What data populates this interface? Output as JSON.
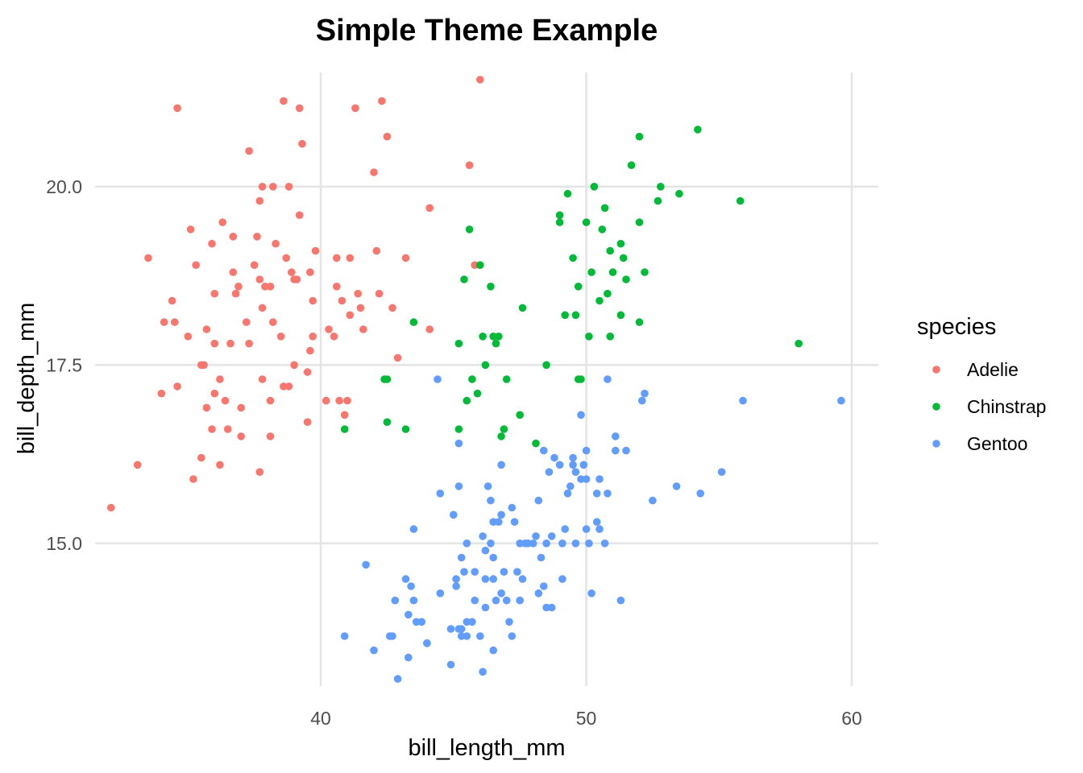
{
  "chart_data": {
    "type": "scatter",
    "title": "Simple Theme Example",
    "xlabel": "bill_length_mm",
    "ylabel": "bill_depth_mm",
    "xlim": [
      31.5,
      61
    ],
    "ylim": [
      13,
      21.6
    ],
    "x_ticks": [
      40,
      50,
      60
    ],
    "x_tick_labels": [
      "40",
      "50",
      "60"
    ],
    "y_ticks": [
      15,
      17.5,
      20
    ],
    "y_tick_labels": [
      "15.0",
      "17.5",
      "20.0"
    ],
    "grid": true,
    "legend": {
      "title": "species",
      "placement": "right"
    },
    "series": [
      {
        "name": "Adelie",
        "color": "#F8766D",
        "points": [
          [
            32.1,
            15.5
          ],
          [
            33.1,
            16.1
          ],
          [
            33.5,
            19.0
          ],
          [
            34.0,
            17.1
          ],
          [
            34.1,
            18.1
          ],
          [
            34.4,
            18.4
          ],
          [
            34.5,
            18.1
          ],
          [
            34.6,
            21.1
          ],
          [
            34.6,
            17.2
          ],
          [
            35.0,
            17.9
          ],
          [
            35.1,
            19.4
          ],
          [
            35.2,
            15.9
          ],
          [
            35.3,
            18.9
          ],
          [
            35.5,
            16.2
          ],
          [
            35.5,
            17.5
          ],
          [
            35.6,
            17.5
          ],
          [
            35.7,
            16.9
          ],
          [
            35.7,
            18.0
          ],
          [
            35.9,
            19.2
          ],
          [
            35.9,
            16.6
          ],
          [
            36.0,
            17.8
          ],
          [
            36.0,
            18.5
          ],
          [
            36.0,
            17.1
          ],
          [
            36.2,
            17.3
          ],
          [
            36.2,
            16.1
          ],
          [
            36.3,
            19.5
          ],
          [
            36.4,
            17.0
          ],
          [
            36.5,
            16.6
          ],
          [
            36.6,
            17.8
          ],
          [
            36.7,
            19.3
          ],
          [
            36.7,
            18.8
          ],
          [
            36.8,
            18.5
          ],
          [
            36.9,
            18.6
          ],
          [
            37.0,
            16.9
          ],
          [
            37.0,
            16.5
          ],
          [
            37.2,
            18.1
          ],
          [
            37.3,
            17.8
          ],
          [
            37.3,
            20.5
          ],
          [
            37.5,
            18.9
          ],
          [
            37.6,
            19.3
          ],
          [
            37.7,
            18.7
          ],
          [
            37.7,
            16.0
          ],
          [
            37.7,
            19.8
          ],
          [
            37.8,
            18.3
          ],
          [
            37.8,
            20.0
          ],
          [
            37.8,
            17.3
          ],
          [
            37.9,
            18.6
          ],
          [
            38.1,
            18.6
          ],
          [
            38.1,
            17.0
          ],
          [
            38.1,
            16.5
          ],
          [
            38.2,
            18.1
          ],
          [
            38.2,
            20.0
          ],
          [
            38.3,
            19.2
          ],
          [
            38.5,
            17.9
          ],
          [
            38.6,
            21.2
          ],
          [
            38.6,
            17.2
          ],
          [
            38.7,
            19.0
          ],
          [
            38.8,
            17.2
          ],
          [
            38.8,
            20.0
          ],
          [
            38.9,
            18.8
          ],
          [
            39.0,
            17.5
          ],
          [
            39.0,
            18.7
          ],
          [
            39.1,
            18.7
          ],
          [
            39.2,
            19.6
          ],
          [
            39.2,
            21.1
          ],
          [
            39.3,
            20.6
          ],
          [
            39.5,
            17.4
          ],
          [
            39.5,
            16.7
          ],
          [
            39.6,
            17.7
          ],
          [
            39.6,
            18.8
          ],
          [
            39.7,
            18.4
          ],
          [
            39.7,
            17.9
          ],
          [
            39.8,
            19.1
          ],
          [
            40.2,
            17.0
          ],
          [
            40.3,
            18.0
          ],
          [
            40.5,
            17.9
          ],
          [
            40.6,
            18.6
          ],
          [
            40.6,
            19.0
          ],
          [
            40.7,
            17.0
          ],
          [
            40.8,
            18.4
          ],
          [
            40.9,
            16.8
          ],
          [
            41.0,
            17.0
          ],
          [
            41.1,
            18.2
          ],
          [
            41.1,
            19.0
          ],
          [
            41.3,
            21.1
          ],
          [
            41.4,
            18.5
          ],
          [
            41.5,
            18.3
          ],
          [
            41.6,
            18.0
          ],
          [
            42.0,
            20.2
          ],
          [
            42.1,
            19.1
          ],
          [
            42.2,
            18.5
          ],
          [
            42.3,
            21.2
          ],
          [
            42.5,
            20.7
          ],
          [
            42.7,
            18.3
          ],
          [
            42.9,
            17.6
          ],
          [
            43.2,
            19.0
          ],
          [
            44.1,
            19.7
          ],
          [
            44.1,
            18.0
          ],
          [
            45.6,
            20.3
          ],
          [
            45.8,
            18.9
          ],
          [
            46.0,
            21.5
          ]
        ]
      },
      {
        "name": "Chinstrap",
        "color": "#00BA38",
        "points": [
          [
            40.9,
            16.6
          ],
          [
            42.4,
            17.3
          ],
          [
            42.5,
            17.3
          ],
          [
            42.5,
            16.7
          ],
          [
            43.2,
            16.6
          ],
          [
            43.5,
            18.1
          ],
          [
            45.2,
            17.8
          ],
          [
            45.2,
            16.6
          ],
          [
            45.4,
            18.7
          ],
          [
            45.5,
            17.0
          ],
          [
            45.6,
            19.4
          ],
          [
            45.7,
            17.3
          ],
          [
            45.9,
            17.1
          ],
          [
            46.0,
            18.9
          ],
          [
            46.1,
            17.9
          ],
          [
            46.2,
            17.5
          ],
          [
            46.4,
            18.6
          ],
          [
            46.5,
            17.9
          ],
          [
            46.6,
            17.8
          ],
          [
            46.7,
            17.9
          ],
          [
            46.8,
            16.5
          ],
          [
            46.9,
            16.6
          ],
          [
            47.0,
            17.3
          ],
          [
            47.5,
            16.8
          ],
          [
            47.6,
            18.3
          ],
          [
            48.1,
            16.4
          ],
          [
            48.5,
            17.5
          ],
          [
            49.0,
            19.5
          ],
          [
            49.0,
            19.6
          ],
          [
            49.2,
            18.2
          ],
          [
            49.3,
            19.9
          ],
          [
            49.5,
            19.0
          ],
          [
            49.6,
            18.2
          ],
          [
            49.7,
            17.3
          ],
          [
            49.8,
            17.3
          ],
          [
            50.0,
            19.5
          ],
          [
            50.1,
            17.9
          ],
          [
            50.2,
            18.8
          ],
          [
            50.3,
            20.0
          ],
          [
            50.5,
            18.4
          ],
          [
            50.6,
            19.4
          ],
          [
            50.8,
            18.5
          ],
          [
            50.9,
            17.9
          ],
          [
            51.0,
            18.8
          ],
          [
            51.3,
            19.2
          ],
          [
            51.4,
            19.0
          ],
          [
            51.5,
            18.7
          ],
          [
            51.7,
            20.3
          ],
          [
            52.0,
            19.5
          ],
          [
            52.0,
            18.1
          ],
          [
            52.0,
            20.7
          ],
          [
            52.2,
            18.8
          ],
          [
            52.8,
            20.0
          ],
          [
            53.5,
            19.9
          ],
          [
            54.2,
            20.8
          ],
          [
            55.8,
            19.8
          ],
          [
            58.0,
            17.8
          ],
          [
            50.7,
            19.7
          ],
          [
            50.9,
            19.1
          ],
          [
            52.7,
            19.8
          ],
          [
            49.7,
            18.6
          ],
          [
            51.3,
            18.2
          ]
        ]
      },
      {
        "name": "Gentoo",
        "color": "#619CFF",
        "points": [
          [
            40.9,
            13.7
          ],
          [
            41.7,
            14.7
          ],
          [
            42.0,
            13.5
          ],
          [
            42.6,
            13.7
          ],
          [
            42.7,
            13.7
          ],
          [
            42.8,
            14.2
          ],
          [
            42.9,
            13.1
          ],
          [
            43.2,
            14.5
          ],
          [
            43.3,
            14.0
          ],
          [
            43.3,
            13.4
          ],
          [
            43.4,
            14.4
          ],
          [
            43.5,
            14.2
          ],
          [
            43.5,
            15.2
          ],
          [
            43.6,
            13.9
          ],
          [
            43.8,
            13.9
          ],
          [
            44.0,
            13.6
          ],
          [
            44.4,
            17.3
          ],
          [
            44.5,
            14.3
          ],
          [
            44.5,
            15.7
          ],
          [
            44.9,
            13.8
          ],
          [
            44.9,
            13.3
          ],
          [
            45.0,
            15.4
          ],
          [
            45.1,
            14.5
          ],
          [
            45.1,
            14.4
          ],
          [
            45.2,
            15.8
          ],
          [
            45.2,
            13.8
          ],
          [
            45.2,
            16.4
          ],
          [
            45.3,
            13.8
          ],
          [
            45.3,
            13.7
          ],
          [
            45.4,
            14.6
          ],
          [
            45.5,
            13.7
          ],
          [
            45.5,
            15.0
          ],
          [
            45.5,
            13.9
          ],
          [
            45.7,
            13.9
          ],
          [
            45.8,
            14.6
          ],
          [
            45.8,
            14.2
          ],
          [
            46.1,
            15.1
          ],
          [
            46.2,
            14.5
          ],
          [
            46.2,
            14.1
          ],
          [
            46.2,
            14.9
          ],
          [
            46.3,
            15.8
          ],
          [
            46.4,
            15.6
          ],
          [
            46.4,
            15.0
          ],
          [
            46.5,
            13.5
          ],
          [
            46.5,
            14.5
          ],
          [
            46.5,
            14.8
          ],
          [
            46.6,
            14.2
          ],
          [
            46.7,
            15.3
          ],
          [
            46.8,
            14.3
          ],
          [
            46.8,
            15.4
          ],
          [
            46.8,
            16.1
          ],
          [
            46.9,
            14.6
          ],
          [
            47.2,
            15.5
          ],
          [
            47.2,
            13.7
          ],
          [
            47.3,
            15.3
          ],
          [
            47.4,
            14.6
          ],
          [
            47.5,
            14.2
          ],
          [
            47.5,
            15.0
          ],
          [
            47.6,
            14.5
          ],
          [
            47.7,
            15.0
          ],
          [
            47.8,
            15.0
          ],
          [
            48.1,
            15.1
          ],
          [
            48.2,
            14.3
          ],
          [
            48.2,
            15.6
          ],
          [
            48.4,
            14.4
          ],
          [
            48.4,
            16.3
          ],
          [
            48.5,
            14.1
          ],
          [
            48.5,
            15.0
          ],
          [
            48.6,
            16.0
          ],
          [
            48.7,
            14.1
          ],
          [
            48.7,
            15.1
          ],
          [
            48.8,
            16.2
          ],
          [
            49.0,
            16.1
          ],
          [
            49.1,
            14.5
          ],
          [
            49.1,
            15.0
          ],
          [
            49.2,
            15.2
          ],
          [
            49.3,
            15.7
          ],
          [
            49.4,
            15.8
          ],
          [
            49.5,
            16.2
          ],
          [
            49.5,
            16.1
          ],
          [
            49.6,
            15.0
          ],
          [
            49.6,
            16.0
          ],
          [
            49.8,
            15.9
          ],
          [
            49.8,
            16.8
          ],
          [
            49.9,
            16.1
          ],
          [
            50.0,
            15.2
          ],
          [
            50.0,
            15.9
          ],
          [
            50.0,
            16.3
          ],
          [
            50.1,
            15.0
          ],
          [
            50.2,
            14.3
          ],
          [
            50.4,
            15.3
          ],
          [
            50.4,
            15.7
          ],
          [
            50.5,
            15.2
          ],
          [
            50.5,
            15.9
          ],
          [
            50.7,
            15.0
          ],
          [
            50.8,
            15.7
          ],
          [
            50.8,
            17.3
          ],
          [
            51.1,
            16.3
          ],
          [
            51.1,
            16.5
          ],
          [
            51.3,
            14.2
          ],
          [
            51.5,
            16.3
          ],
          [
            52.1,
            17.0
          ],
          [
            52.2,
            17.1
          ],
          [
            52.5,
            15.6
          ],
          [
            53.4,
            15.8
          ],
          [
            54.3,
            15.7
          ],
          [
            55.1,
            16.0
          ],
          [
            55.9,
            17.0
          ],
          [
            59.6,
            17.0
          ],
          [
            46.1,
            13.2
          ],
          [
            47.0,
            14.2
          ],
          [
            44.0,
            13.6
          ],
          [
            45.3,
            14.8
          ],
          [
            48.0,
            15.0
          ],
          [
            46.0,
            13.7
          ],
          [
            47.1,
            13.9
          ],
          [
            48.3,
            14.8
          ],
          [
            46.5,
            15.3
          ]
        ]
      }
    ]
  }
}
